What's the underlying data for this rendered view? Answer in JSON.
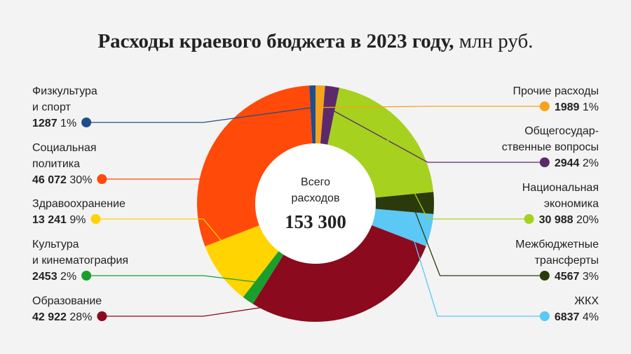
{
  "chart_data": {
    "type": "donut",
    "title": "Расходы краевого бюджета в 2023 году,",
    "unit": "млн руб.",
    "center_label": [
      "Всего",
      "расходов"
    ],
    "total": 153300,
    "total_label": "153 300",
    "series": [
      {
        "name": [
          "Прочие расходы"
        ],
        "color": "#f7a21b",
        "value": 1989,
        "value_label": "1989",
        "share": 1,
        "share_label": "1%"
      },
      {
        "name": [
          "Общегосудар-",
          "ственные вопросы"
        ],
        "color": "#5c2a6b",
        "value": 2944,
        "value_label": "2944",
        "share": 2,
        "share_label": "2%"
      },
      {
        "name": [
          "Национальная",
          "экономика"
        ],
        "color": "#a6d11f",
        "value": 30988,
        "value_label": "30 988",
        "share": 20,
        "share_label": "20%"
      },
      {
        "name": [
          "Межбюджетные",
          "трансферты"
        ],
        "color": "#2b3a0b",
        "value": 4567,
        "value_label": "4567",
        "share": 3,
        "share_label": "3%"
      },
      {
        "name": [
          "ЖКХ"
        ],
        "color": "#5bc8f5",
        "value": 6837,
        "value_label": "6837",
        "share": 4,
        "share_label": "4%"
      },
      {
        "name": [
          "Образование"
        ],
        "color": "#8b0a1e",
        "value": 42922,
        "value_label": "42 922",
        "share": 28,
        "share_label": "28%"
      },
      {
        "name": [
          "Культура",
          "и кинематография"
        ],
        "color": "#1a9e2c",
        "value": 2453,
        "value_label": "2453",
        "share": 2,
        "share_label": "2%"
      },
      {
        "name": [
          "Здравоохранение"
        ],
        "color": "#ffd400",
        "value": 13241,
        "value_label": "13 241",
        "share": 9,
        "share_label": "9%"
      },
      {
        "name": [
          "Социальная",
          "политика"
        ],
        "color": "#ff4a0a",
        "value": 46072,
        "value_label": "46 072",
        "share": 30,
        "share_label": "30%"
      },
      {
        "name": [
          "Физкультура",
          "и спорт"
        ],
        "color": "#1f4e8c",
        "value": 1287,
        "value_label": "1287",
        "share": 1,
        "share_label": "1%"
      }
    ]
  }
}
